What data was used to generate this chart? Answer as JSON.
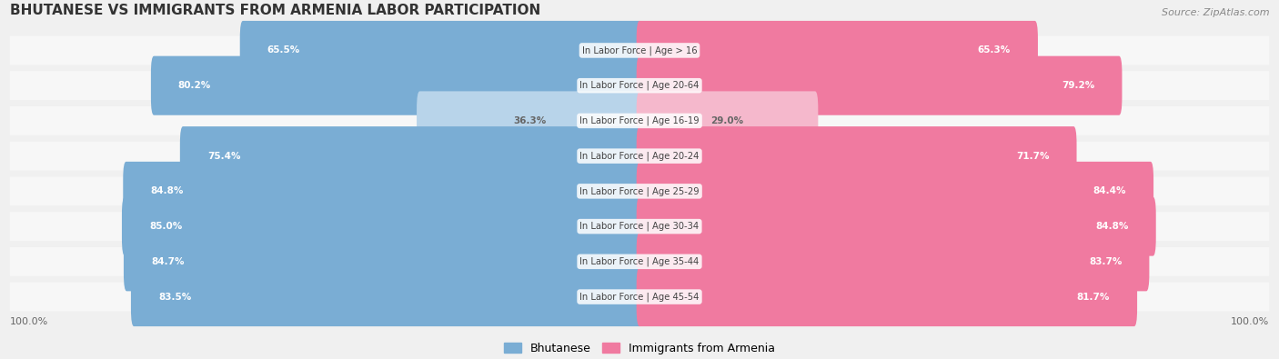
{
  "title": "BHUTANESE VS IMMIGRANTS FROM ARMENIA LABOR PARTICIPATION",
  "source": "Source: ZipAtlas.com",
  "categories": [
    "In Labor Force | Age > 16",
    "In Labor Force | Age 20-64",
    "In Labor Force | Age 16-19",
    "In Labor Force | Age 20-24",
    "In Labor Force | Age 25-29",
    "In Labor Force | Age 30-34",
    "In Labor Force | Age 35-44",
    "In Labor Force | Age 45-54"
  ],
  "bhutanese": [
    65.5,
    80.2,
    36.3,
    75.4,
    84.8,
    85.0,
    84.7,
    83.5
  ],
  "armenian": [
    65.3,
    79.2,
    29.0,
    71.7,
    84.4,
    84.8,
    83.7,
    81.7
  ],
  "bhutanese_color": "#7aadd4",
  "bhutanese_light_color": "#b8d4ea",
  "armenian_color": "#f07aa0",
  "armenian_light_color": "#f5b8cc",
  "label_color_dark": "#ffffff",
  "label_color_light": "#555555",
  "bg_color": "#f0f0f0",
  "row_bg_color": "#e8e8e8",
  "center_label_color": "#555555",
  "max_value": 100.0,
  "legend_bhutanese": "Bhutanese",
  "legend_armenian": "Immigrants from Armenia",
  "bottom_left_label": "100.0%",
  "bottom_right_label": "100.0%"
}
